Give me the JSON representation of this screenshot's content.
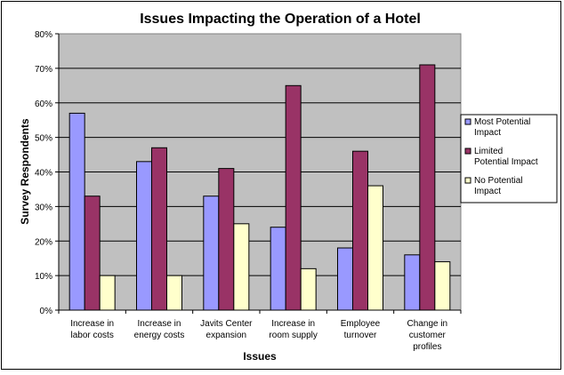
{
  "chart_data": {
    "type": "bar",
    "title": "Issues Impacting the Operation of a Hotel",
    "xlabel": "Issues",
    "ylabel": "Survey Respondents",
    "ylim": [
      0,
      80
    ],
    "y_ticks": [
      "0%",
      "10%",
      "20%",
      "30%",
      "40%",
      "50%",
      "60%",
      "70%",
      "80%"
    ],
    "categories": [
      [
        "Increase in",
        "labor costs"
      ],
      [
        "Increase in",
        "energy costs"
      ],
      [
        "Javits Center",
        "expansion"
      ],
      [
        "Increase in",
        "room supply"
      ],
      [
        "Employee",
        "turnover"
      ],
      [
        "Change in",
        "customer",
        "profiles"
      ]
    ],
    "series": [
      {
        "name": [
          "Most Potential",
          "Impact"
        ],
        "color": "#9999FF",
        "values": [
          57,
          43,
          33,
          24,
          18,
          16
        ]
      },
      {
        "name": [
          "Limited",
          "Potential Impact"
        ],
        "color": "#993366",
        "values": [
          33,
          47,
          41,
          65,
          46,
          71
        ]
      },
      {
        "name": [
          "No Potential",
          "Impact"
        ],
        "color": "#FFFFCC",
        "values": [
          10,
          10,
          25,
          12,
          36,
          14
        ]
      }
    ],
    "grid": true,
    "legend": "right",
    "plot_background": "#C0C0C0"
  }
}
